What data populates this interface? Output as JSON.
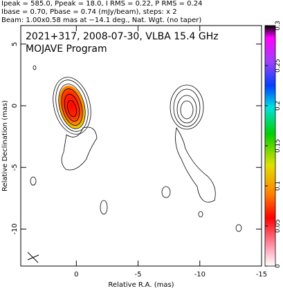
{
  "chart_data": {
    "type": "image",
    "header": [
      "Ipeak = 585.0, Ppeak = 18.0, I RMS = 0.22, P RMS = 0.24",
      "Ibase = 0.70, Pbase = 0.74 (mJy/beam), steps: x 2",
      "Beam: 1.00x0.58 mas at −14.1 deg., Nat. Wgt. (no taper)"
    ],
    "title": "2021+317, 2008-07-30, VLBA 15.4 GHz",
    "subtitle": "MOJAVE Program",
    "xlabel": "Relative R.A. (mas)",
    "ylabel": "Relative Declination (mas)",
    "xlim": [
      4.5,
      -15
    ],
    "xticks": [
      0,
      -5,
      -10,
      -15
    ],
    "ylim": [
      -13,
      6.5
    ],
    "yticks": [
      5,
      0,
      -5,
      -10
    ],
    "clim": [
      0,
      0.3
    ],
    "cticks": [
      0,
      0.05,
      0.1,
      0.15,
      0.2,
      0.25,
      0.3
    ]
  }
}
